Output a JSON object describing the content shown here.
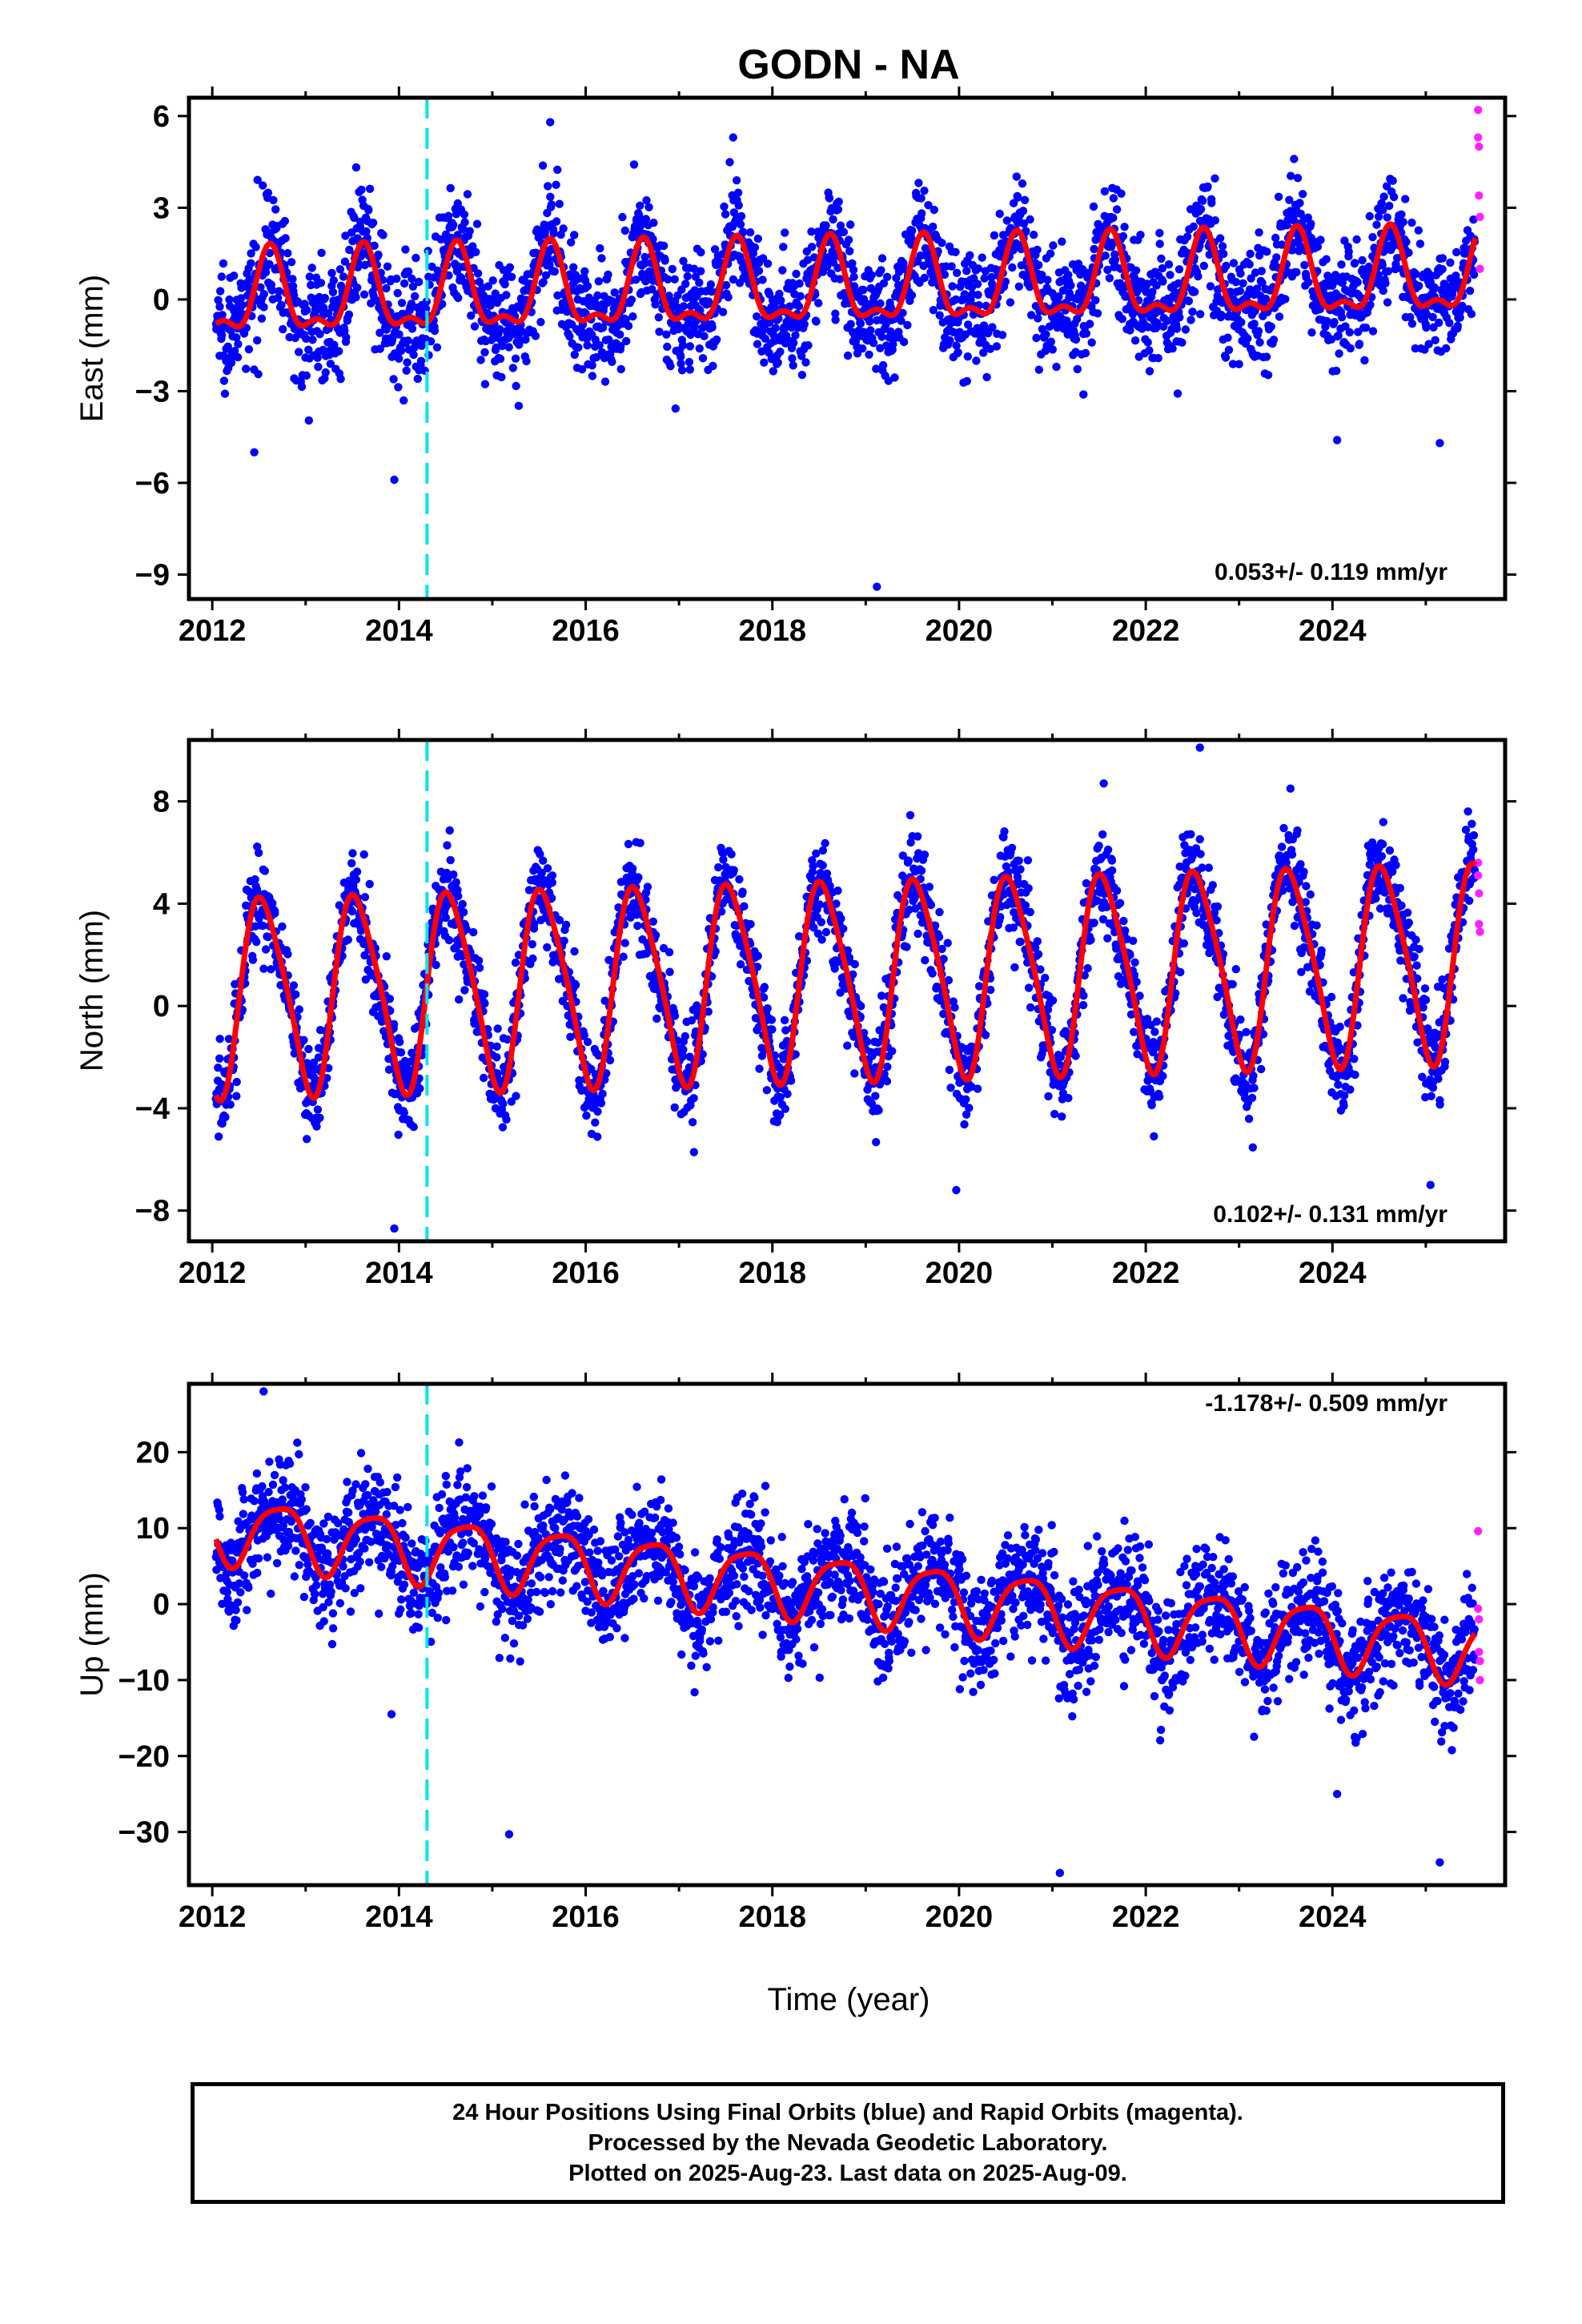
{
  "title": "GODN - NA",
  "xlabel": "Time (year)",
  "footer": {
    "line1": "24 Hour Positions Using Final Orbits (blue) and Rapid Orbits (magenta).",
    "line2": "Processed by the Nevada Geodetic Laboratory.",
    "line3": "Plotted on 2025-Aug-23. Last data on 2025-Aug-09."
  },
  "colors": {
    "final_points": "#0000ff",
    "rapid_points": "#ff22ff",
    "model_curve": "#ff0000",
    "event_line": "#00e5ee",
    "frame": "#000000"
  },
  "chart_data": [
    {
      "type": "scatter",
      "panel": "east",
      "ylabel": "East (mm)",
      "rate_text": "0.053+/- 0.119 mm/yr",
      "xlim": [
        2011.75,
        2025.85
      ],
      "ylim": [
        -9.8,
        6.6
      ],
      "x_ticks": [
        2012,
        2014,
        2016,
        2018,
        2020,
        2022,
        2024
      ],
      "y_ticks": [
        -9,
        -6,
        -3,
        0,
        3,
        6
      ],
      "y_tick_labels": [
        "−9",
        "−6",
        "−3",
        "0",
        "3",
        "6"
      ],
      "event_line_x": 2014.3,
      "data_start": 2012.04,
      "data_end": 2025.53,
      "model": {
        "offset": 0.0,
        "trend_per_year": 0.053,
        "amp_annual": 1.25,
        "phase_annual_peak": 2012.62,
        "amp_semi": 0.55,
        "phase_semi_peak": 2012.62
      },
      "scatter_sigma": 0.95,
      "outliers": [
        [
          2012.45,
          -5.0
        ],
        [
          2013.95,
          -5.9
        ],
        [
          2019.12,
          -9.4
        ],
        [
          2024.05,
          -4.6
        ],
        [
          2025.15,
          -4.7
        ],
        [
          2015.62,
          5.8
        ],
        [
          2017.58,
          5.3
        ]
      ],
      "rapid_points": [
        [
          2025.56,
          6.2
        ],
        [
          2025.56,
          5.3
        ],
        [
          2025.57,
          5.0
        ],
        [
          2025.57,
          3.4
        ],
        [
          2025.58,
          2.7
        ],
        [
          2025.58,
          1.0
        ]
      ]
    },
    {
      "type": "scatter",
      "panel": "north",
      "ylabel": "North (mm)",
      "rate_text": "0.102+/- 0.131 mm/yr",
      "xlim": [
        2011.75,
        2025.85
      ],
      "ylim": [
        -9.2,
        10.4
      ],
      "x_ticks": [
        2012,
        2014,
        2016,
        2018,
        2020,
        2022,
        2024
      ],
      "y_ticks": [
        -8,
        -4,
        0,
        4,
        8
      ],
      "y_tick_labels": [
        "−8",
        "−4",
        "0",
        "4",
        "8"
      ],
      "event_line_x": 2014.3,
      "data_start": 2012.04,
      "data_end": 2025.53,
      "model": {
        "offset": 0.4,
        "trend_per_year": 0.102,
        "amp_annual": 3.8,
        "phase_annual_peak": 2012.55,
        "amp_semi": 0.6,
        "phase_semi_peak": 2012.4
      },
      "scatter_sigma": 0.95,
      "outliers": [
        [
          2013.95,
          -8.7
        ],
        [
          2019.97,
          -7.2
        ],
        [
          2025.05,
          -7.0
        ],
        [
          2022.58,
          10.1
        ],
        [
          2023.55,
          8.5
        ],
        [
          2021.55,
          8.7
        ]
      ],
      "rapid_points": [
        [
          2025.56,
          5.6
        ],
        [
          2025.56,
          5.1
        ],
        [
          2025.57,
          4.4
        ],
        [
          2025.57,
          3.2
        ],
        [
          2025.58,
          2.9
        ]
      ]
    },
    {
      "type": "scatter",
      "panel": "up",
      "ylabel": "Up (mm)",
      "rate_text": "-1.178+/- 0.509 mm/yr",
      "xlim": [
        2011.75,
        2025.85
      ],
      "ylim": [
        -37,
        29
      ],
      "x_ticks": [
        2012,
        2014,
        2016,
        2018,
        2020,
        2022,
        2024
      ],
      "y_ticks": [
        -30,
        -20,
        -10,
        0,
        10,
        20
      ],
      "y_tick_labels": [
        "−30",
        "−20",
        "−10",
        "0",
        "10",
        "20"
      ],
      "event_line_x": 2014.3,
      "data_start": 2012.04,
      "data_end": 2025.53,
      "model": {
        "offset": 10.0,
        "trend_per_year": -1.178,
        "amp_annual": 4.2,
        "phase_annual_peak": 2012.72,
        "amp_semi": 0.9,
        "phase_semi_peak": 2012.45
      },
      "scatter_sigma": 3.8,
      "outliers": [
        [
          2012.55,
          28.0
        ],
        [
          2015.18,
          -30.3
        ],
        [
          2021.08,
          -35.4
        ],
        [
          2025.15,
          -34.0
        ],
        [
          2024.05,
          -25.0
        ],
        [
          2013.92,
          -14.5
        ]
      ],
      "rapid_points": [
        [
          2025.56,
          9.6
        ],
        [
          2025.56,
          -0.6
        ],
        [
          2025.57,
          -2.0
        ],
        [
          2025.57,
          -6.3
        ],
        [
          2025.58,
          -7.5
        ],
        [
          2025.58,
          -10.0
        ]
      ]
    }
  ]
}
